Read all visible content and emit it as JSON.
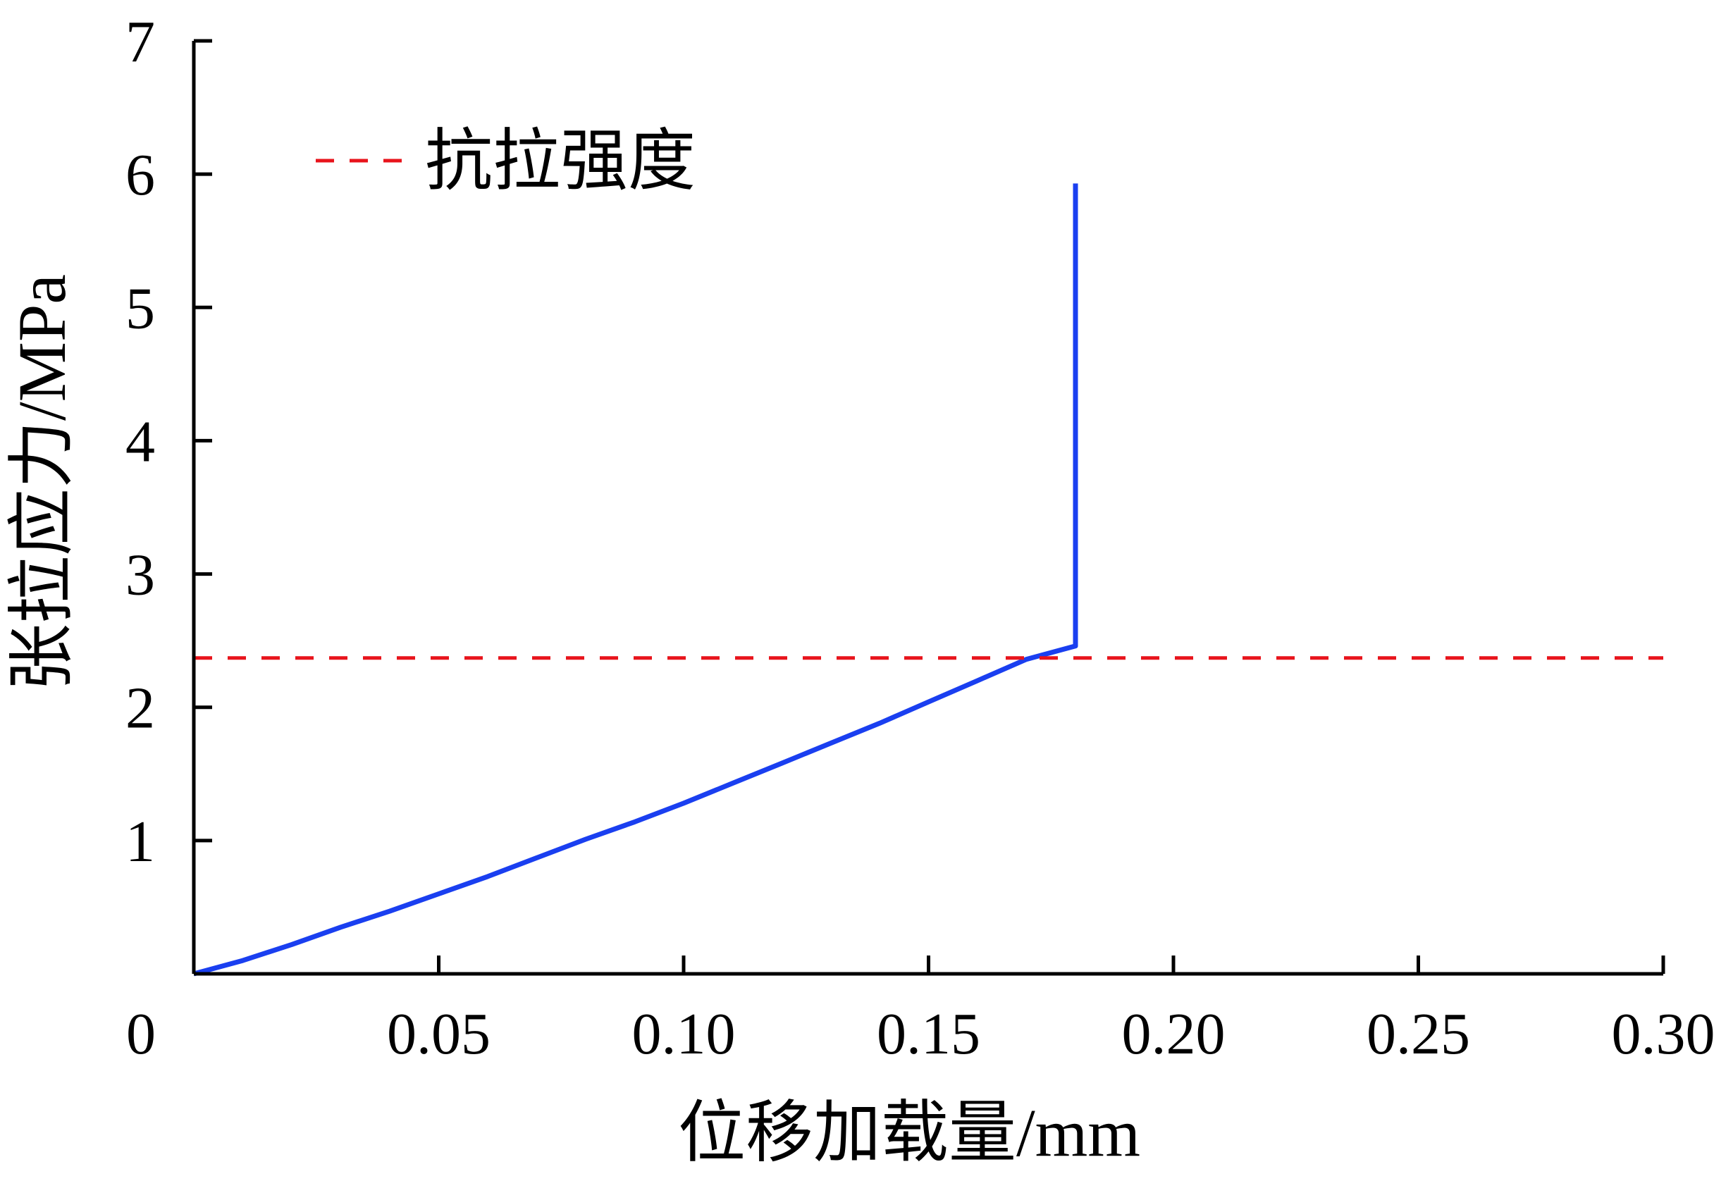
{
  "chart_data": {
    "type": "line",
    "xlabel": "位移加载量/mm",
    "ylabel": "张拉应力/MPa",
    "xlim": [
      0,
      0.3
    ],
    "ylim": [
      0,
      7
    ],
    "x_ticks": [
      {
        "value": 0,
        "label": "0"
      },
      {
        "value": 0.05,
        "label": "0.05"
      },
      {
        "value": 0.1,
        "label": "0.10"
      },
      {
        "value": 0.15,
        "label": "0.15"
      },
      {
        "value": 0.2,
        "label": "0.20"
      },
      {
        "value": 0.25,
        "label": "0.25"
      },
      {
        "value": 0.3,
        "label": "0.30"
      }
    ],
    "y_ticks": [
      {
        "value": 1,
        "label": "1"
      },
      {
        "value": 2,
        "label": "2"
      },
      {
        "value": 3,
        "label": "3"
      },
      {
        "value": 4,
        "label": "4"
      },
      {
        "value": 5,
        "label": "5"
      },
      {
        "value": 6,
        "label": "6"
      },
      {
        "value": 7,
        "label": "7"
      }
    ],
    "grid": false,
    "legend_position": "top-left",
    "series": [
      {
        "color": "#1a3ff0",
        "dash": "solid",
        "x": [
          0,
          0.01,
          0.02,
          0.03,
          0.04,
          0.05,
          0.06,
          0.07,
          0.08,
          0.09,
          0.1,
          0.11,
          0.12,
          0.13,
          0.14,
          0.15,
          0.16,
          0.17,
          0.18,
          0.18
        ],
        "y": [
          0,
          0.1,
          0.22,
          0.35,
          0.47,
          0.6,
          0.73,
          0.87,
          1.01,
          1.14,
          1.28,
          1.43,
          1.58,
          1.73,
          1.88,
          2.04,
          2.2,
          2.36,
          2.46,
          5.93
        ]
      },
      {
        "name": "抗拉强度",
        "color": "#e8141c",
        "dash": "dashed",
        "x": [
          0,
          0.3
        ],
        "y": [
          2.37,
          2.37
        ]
      }
    ],
    "legend": [
      {
        "label": "抗拉强度",
        "color": "#e8141c",
        "dash": "dashed"
      }
    ]
  }
}
